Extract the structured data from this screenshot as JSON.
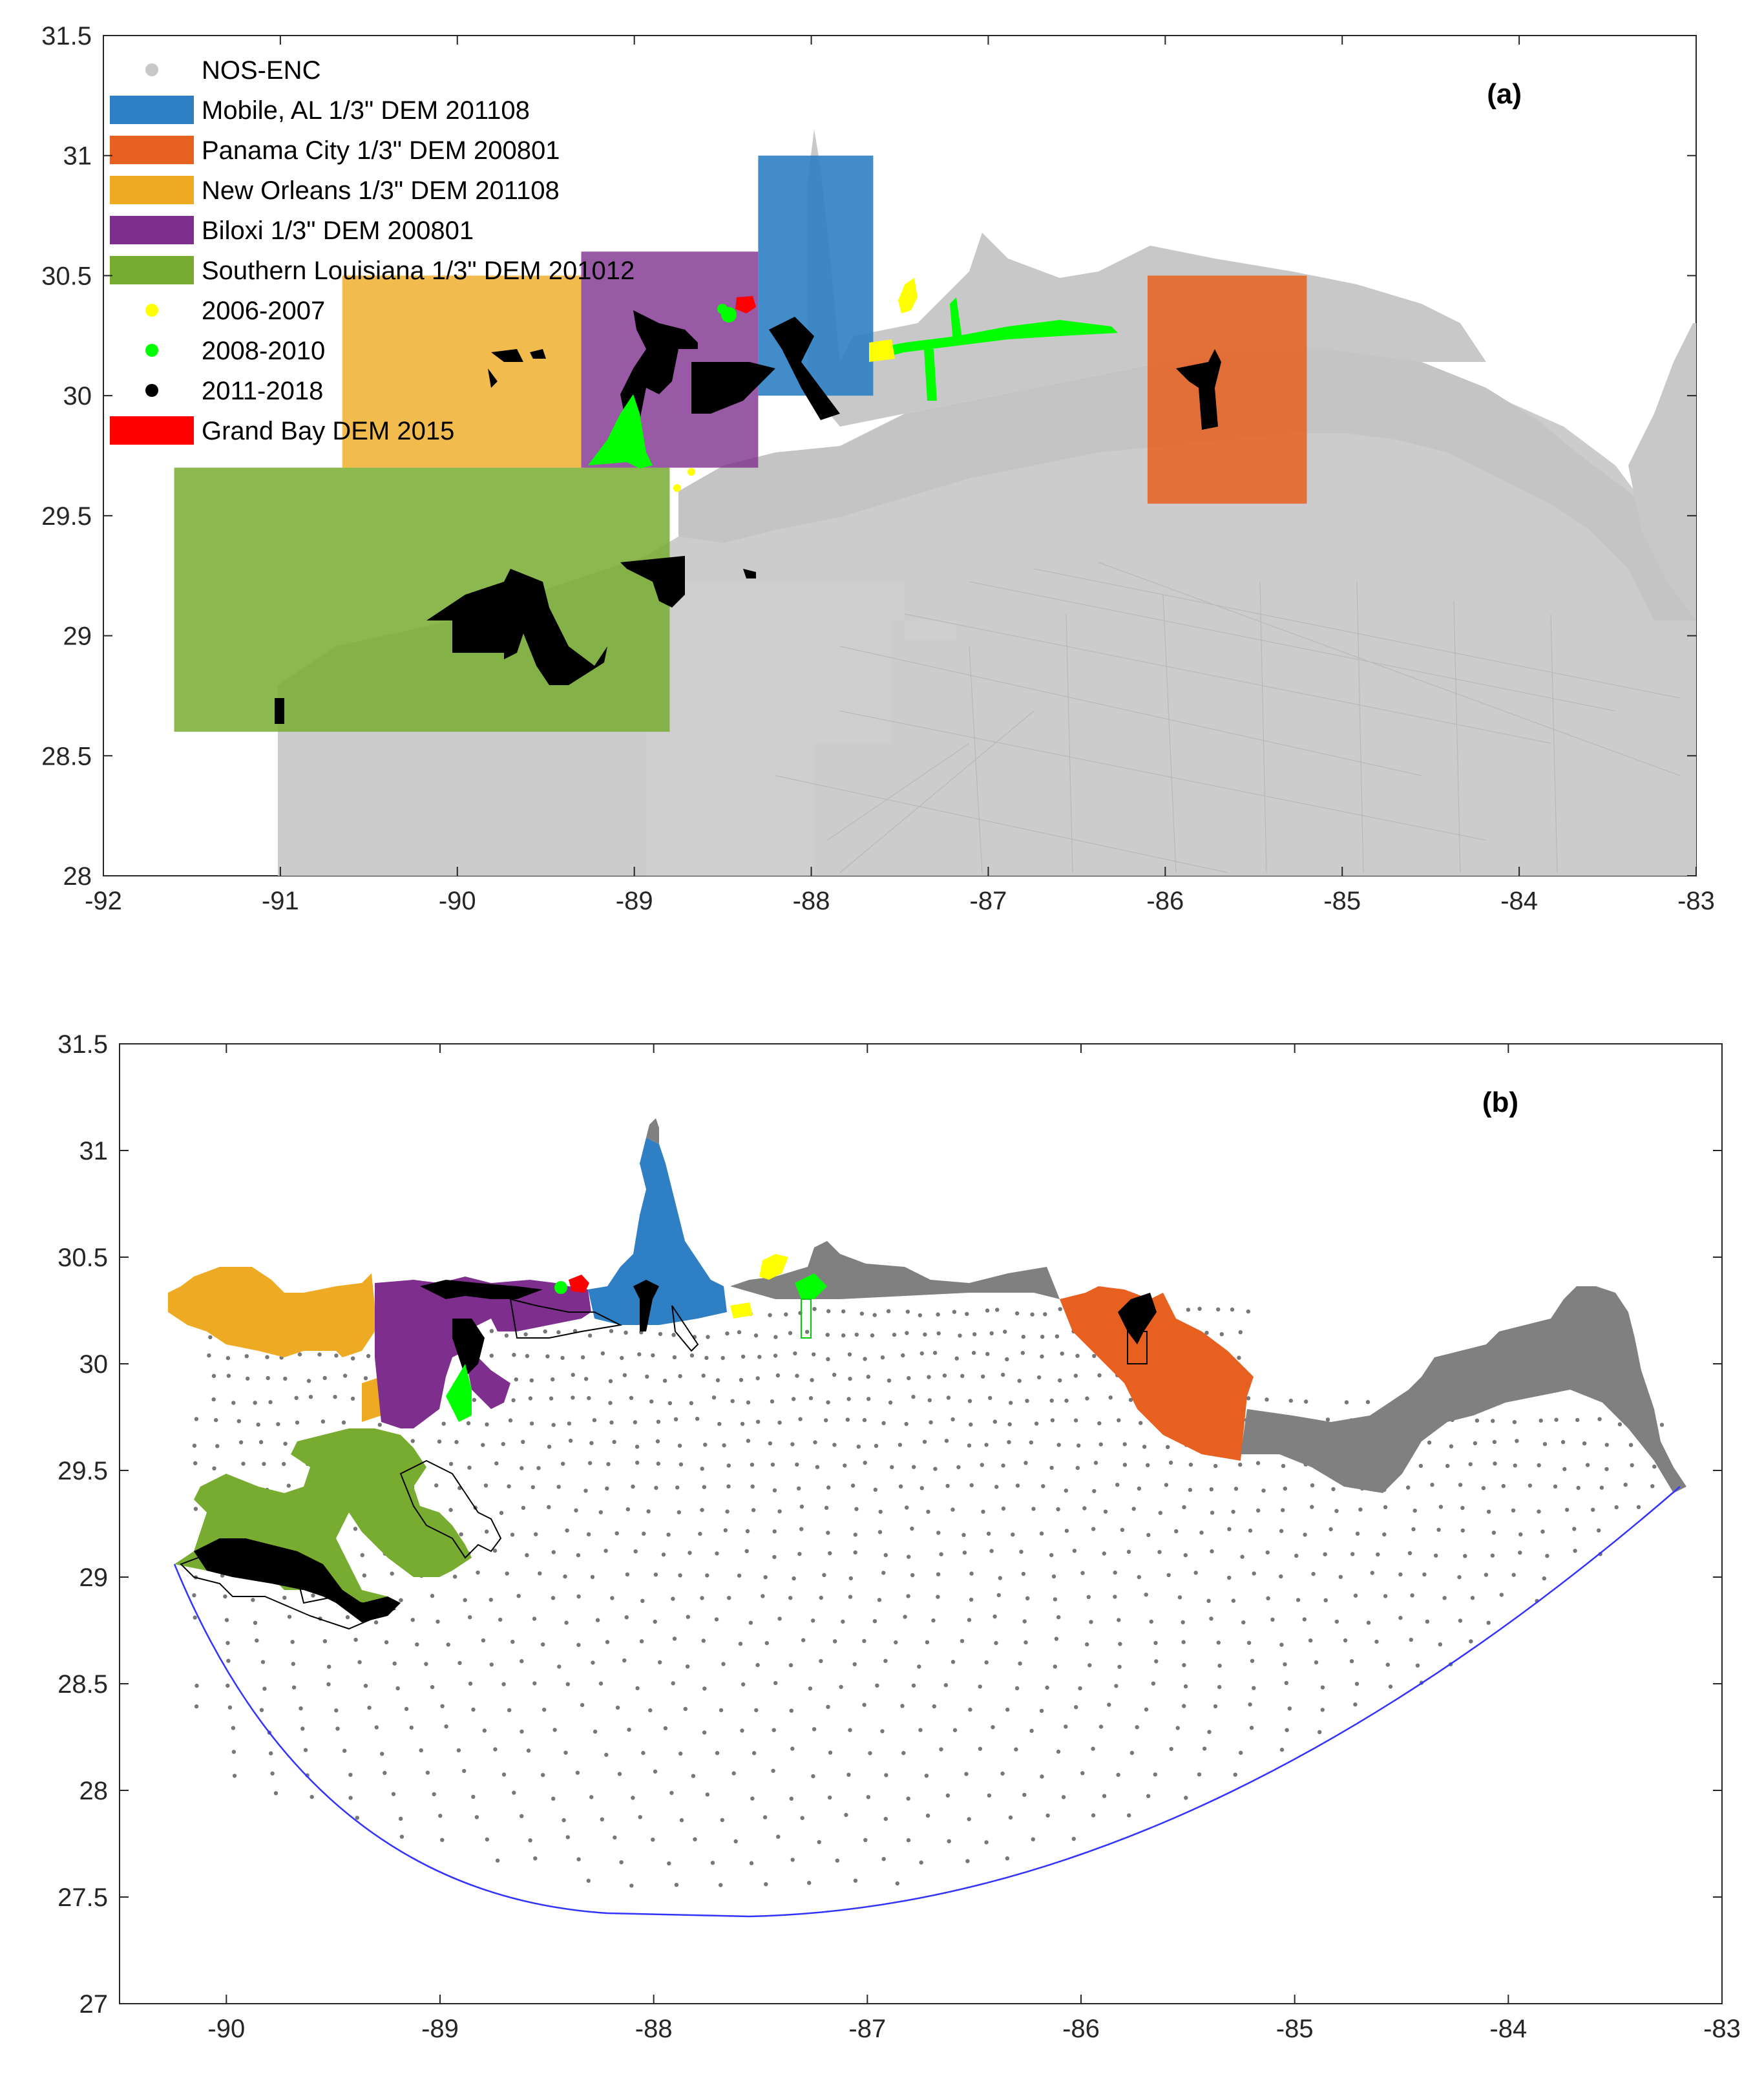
{
  "figure": {
    "panels": [
      {
        "label": "(a)",
        "xticks": [
          -92,
          -91,
          -90,
          -89,
          -88,
          -87,
          -86,
          -85,
          -84,
          -83
        ],
        "yticks": [
          28,
          28.5,
          29,
          29.5,
          30,
          30.5,
          31,
          31.5
        ],
        "xlim": [
          -92,
          -83
        ],
        "ylim": [
          28,
          31.5
        ],
        "legend": [
          {
            "label": "NOS-ENC",
            "type": "dot",
            "color": "#c8c8c8"
          },
          {
            "label": "Mobile, AL 1/3\" DEM 201108",
            "type": "patch",
            "color": "#2f7fc4"
          },
          {
            "label": "Panama City 1/3\" DEM 200801",
            "type": "patch",
            "color": "#e8601f"
          },
          {
            "label": "New Orleans 1/3\" DEM 201108",
            "type": "patch",
            "color": "#eeaa22"
          },
          {
            "label": "Biloxi 1/3\" DEM 200801",
            "type": "patch",
            "color": "#7e2f8e"
          },
          {
            "label": "Southern Louisiana 1/3\" DEM 201012",
            "type": "patch",
            "color": "#77ac30"
          },
          {
            "label": "2006-2007",
            "type": "dot",
            "color": "#ffff00"
          },
          {
            "label": "2008-2010",
            "type": "dot",
            "color": "#00ff00"
          },
          {
            "label": "2011-2018",
            "type": "dot",
            "color": "#000000"
          },
          {
            "label": "Grand Bay DEM 2015",
            "type": "patch",
            "color": "#ff0000"
          }
        ],
        "dem_boxes": [
          {
            "name": "Southern Louisiana",
            "lon": [
              -91.6,
              -88.8
            ],
            "lat": [
              28.6,
              29.7
            ],
            "color": "#77ac30"
          },
          {
            "name": "New Orleans",
            "lon": [
              -90.65,
              -89.3
            ],
            "lat": [
              29.7,
              30.5
            ],
            "color": "#eeaa22"
          },
          {
            "name": "Biloxi",
            "lon": [
              -89.3,
              -88.3
            ],
            "lat": [
              29.7,
              30.6
            ],
            "color": "#7e2f8e"
          },
          {
            "name": "Mobile",
            "lon": [
              -88.3,
              -87.65
            ],
            "lat": [
              30.0,
              31.0
            ],
            "color": "#2f7fc4"
          },
          {
            "name": "Panama City",
            "lon": [
              -86.1,
              -85.2
            ],
            "lat": [
              29.55,
              30.5
            ],
            "color": "#e8601f"
          }
        ]
      },
      {
        "label": "(b)",
        "xticks": [
          -90,
          -89,
          -88,
          -87,
          -86,
          -85,
          -84,
          -83
        ],
        "yticks": [
          27,
          27.5,
          28,
          28.5,
          29,
          29.5,
          30,
          30.5,
          31,
          31.5
        ],
        "xlim": [
          -90.5,
          -83
        ],
        "ylim": [
          27,
          31.5
        ],
        "boundary_color": "#3333ff"
      }
    ]
  }
}
